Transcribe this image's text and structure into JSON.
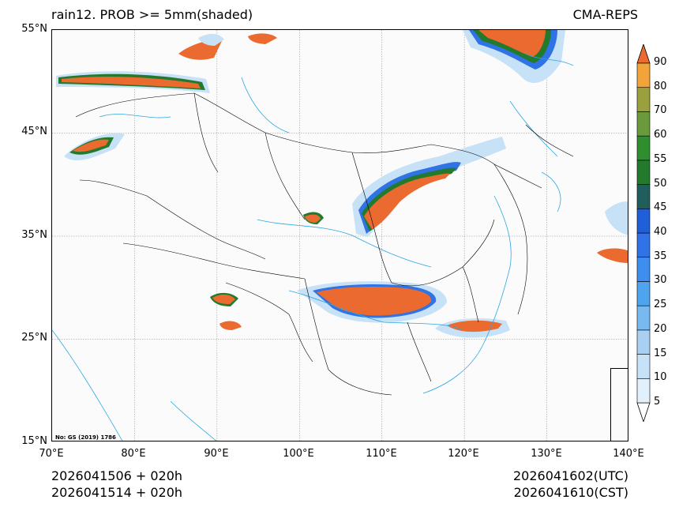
{
  "header": {
    "title_left": "rain12. PROB >= 5mm(shaded)",
    "title_right": "CMA-REPS"
  },
  "map": {
    "lon_range": [
      70,
      140
    ],
    "lat_range": [
      15,
      55
    ],
    "lat_ticks": [
      {
        "value": 55,
        "label": "55°N"
      },
      {
        "value": 45,
        "label": "45°N"
      },
      {
        "value": 35,
        "label": "35°N"
      },
      {
        "value": 25,
        "label": "25°N"
      },
      {
        "value": 15,
        "label": "15°N"
      }
    ],
    "lon_ticks": [
      {
        "value": 70,
        "label": "70°E"
      },
      {
        "value": 80,
        "label": "80°E"
      },
      {
        "value": 90,
        "label": "90°E"
      },
      {
        "value": 100,
        "label": "100°E"
      },
      {
        "value": 110,
        "label": "110°E"
      },
      {
        "value": 120,
        "label": "120°E"
      },
      {
        "value": 130,
        "label": "130°E"
      },
      {
        "value": 140,
        "label": "140°E"
      }
    ],
    "note": "No: GS (2019) 1786",
    "colors": {
      "boundary": "#000000",
      "river": "#2ea7e0",
      "grid": "#888888",
      "background": "#fbfbfb"
    }
  },
  "colorbar": {
    "levels": [
      "5",
      "10",
      "15",
      "20",
      "25",
      "30",
      "35",
      "40",
      "45",
      "50",
      "55",
      "60",
      "70",
      "80",
      "90"
    ],
    "colors": [
      "#e1f0fb",
      "#c7e1f7",
      "#a9d0f2",
      "#78b9ef",
      "#4ea4ee",
      "#3d8eef",
      "#2f73e6",
      "#1f5fd9",
      "#1f5e5a",
      "#237a2d",
      "#2f8f2f",
      "#6a9a3c",
      "#9aa03d",
      "#f2a33a",
      "#f07c34",
      "#ea6a30"
    ]
  },
  "footer": {
    "init_utc": "2026041506  +  020h",
    "init_cst": "2026041514  +  020h",
    "valid_utc": "2026041602(UTC)",
    "valid_cst": "2026041610(CST)"
  }
}
